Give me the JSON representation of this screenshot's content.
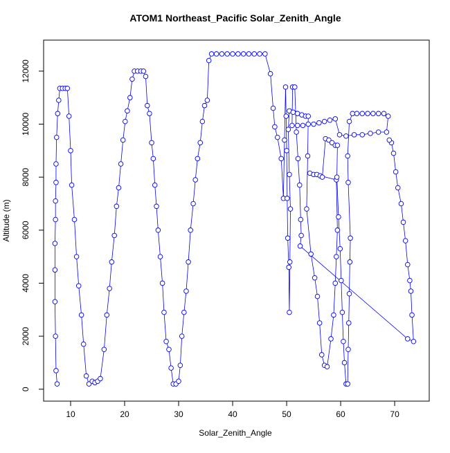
{
  "chart_data": {
    "type": "line",
    "title": "ATOM1 Northeast_Pacific Solar_Zenith_Angle",
    "xlabel": "Solar_Zenith_Angle",
    "ylabel": "Altitude (m)",
    "color": "#0000ff",
    "markers": "circle",
    "xlim": [
      5,
      76.4
    ],
    "ylim": [
      -450,
      13170
    ],
    "xticks": [
      10,
      20,
      30,
      40,
      50,
      60,
      70
    ],
    "yticks": [
      0,
      2000,
      4000,
      6000,
      8000,
      10000,
      12000
    ],
    "x": [
      7.5,
      7.3,
      7.2,
      7.1,
      7.1,
      7.1,
      7.2,
      7.2,
      7.3,
      7.3,
      7.4,
      7.6,
      7.8,
      8.0,
      8.5,
      9.0,
      9.4,
      9.7,
      10.0,
      10.2,
      10.7,
      11.1,
      11.5,
      12.0,
      12.4,
      12.9,
      13.4,
      14.0,
      14.5,
      15.0,
      15.5,
      16.2,
      16.7,
      17.2,
      17.6,
      18.1,
      18.5,
      18.9,
      19.3,
      19.7,
      20.1,
      20.5,
      21.0,
      21.4,
      21.8,
      22.4,
      23.0,
      23.5,
      23.9,
      24.2,
      24.6,
      25.0,
      25.3,
      25.6,
      25.9,
      26.2,
      26.6,
      27.0,
      27.3,
      27.7,
      28.2,
      28.6,
      29.0,
      29.5,
      30.0,
      30.3,
      30.6,
      31.0,
      31.4,
      31.8,
      32.2,
      32.7,
      33.1,
      33.5,
      34.0,
      34.4,
      34.8,
      35.3,
      35.6,
      36.1,
      37,
      38,
      39,
      40,
      41,
      42,
      43,
      44,
      45,
      46,
      47.0,
      47.5,
      47.8,
      48.3,
      49.0,
      49.4,
      49.6,
      49.8,
      49.9,
      50.0,
      50.1,
      50.2,
      50.4,
      50.5,
      50.6,
      50.7,
      50.5,
      50.3,
      50.5,
      51.2,
      52.0,
      52.8,
      53.5,
      54.0,
      53.9,
      53.7,
      54.5,
      55.2,
      55.7,
      56.1,
      56.5,
      57.0,
      57.5,
      58.2,
      58.7,
      59.0,
      59.2,
      59.4,
      59.2,
      54.3,
      55.0,
      55.6,
      56.2,
      56.6,
      57.2,
      57.8,
      58.4,
      59.0,
      59.4,
      59.3,
      59.6,
      59.9,
      60.1,
      60.3,
      60.5,
      60.7,
      61.0,
      61.3,
      61.4,
      61.5,
      61.6,
      61.7,
      61.8,
      61.4,
      61.3,
      61.6,
      62.2,
      63,
      64,
      65,
      66,
      67,
      68,
      68.8,
      68.5,
      67,
      65.5,
      64,
      62.5,
      61,
      59.8,
      59,
      58,
      57,
      56,
      55,
      54,
      53,
      52,
      51,
      51.1,
      51.5,
      51.8,
      52.1,
      52.4,
      52.6,
      52.7,
      52.5,
      72.4,
      73.5,
      73.2,
      73.0,
      72.8,
      72.4,
      72.0,
      71.6,
      71.2,
      70.6,
      70.2,
      69.8,
      69.4,
      69.0
    ],
    "values": [
      200,
      700,
      2000,
      3300,
      4500,
      5500,
      6400,
      7100,
      7800,
      8500,
      9500,
      10400,
      10900,
      11350,
      11350,
      11350,
      11350,
      10300,
      9000,
      7700,
      6400,
      5000,
      3900,
      2800,
      1700,
      500,
      200,
      300,
      250,
      300,
      400,
      1500,
      2800,
      3800,
      4800,
      5800,
      6900,
      7600,
      8500,
      9400,
      10100,
      10500,
      11000,
      11700,
      12000,
      12000,
      12000,
      12000,
      11800,
      10700,
      10400,
      9300,
      8700,
      7700,
      6900,
      6000,
      5000,
      4000,
      2900,
      1800,
      1500,
      800,
      200,
      200,
      300,
      900,
      2000,
      2900,
      3700,
      4800,
      6000,
      7000,
      7900,
      8700,
      9300,
      10100,
      10700,
      10900,
      12400,
      12650,
      12650,
      12650,
      12650,
      12650,
      12650,
      12650,
      12650,
      12650,
      12650,
      12650,
      11900,
      10600,
      9900,
      9500,
      8700,
      7200,
      9400,
      11400,
      10300,
      9000,
      7200,
      5700,
      4600,
      2900,
      4800,
      6800,
      8100,
      9800,
      10500,
      10450,
      10400,
      10350,
      10300,
      10300,
      8800,
      6800,
      5100,
      4200,
      3500,
      2500,
      1300,
      900,
      850,
      1900,
      2800,
      4000,
      5000,
      6000,
      7900,
      8150,
      8100,
      8100,
      8050,
      8000,
      9450,
      9400,
      9300,
      9200,
      9200,
      8000,
      6500,
      5300,
      4100,
      2900,
      1800,
      1000,
      200,
      200,
      1500,
      2500,
      3600,
      4800,
      5700,
      7800,
      8800,
      10100,
      10400,
      10400,
      10400,
      10400,
      10400,
      10400,
      10400,
      10300,
      9700,
      9700,
      9650,
      9600,
      9600,
      9550,
      9600,
      10200,
      10150,
      10100,
      10050,
      10000,
      10000,
      9950,
      9950,
      9950,
      11400,
      11400,
      9700,
      8700,
      7700,
      6400,
      5800,
      5400,
      1900,
      1800,
      2800,
      3700,
      4100,
      4700,
      5600,
      6300,
      7000,
      7600,
      8200,
      8900,
      9300,
      9400
    ]
  }
}
